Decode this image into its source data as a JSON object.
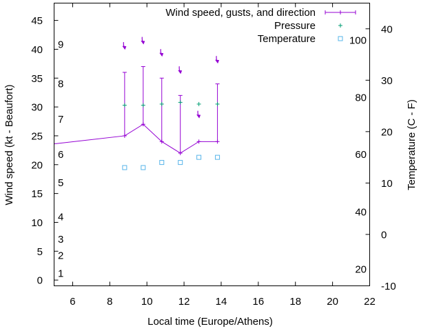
{
  "chart_data": {
    "type": "line",
    "xlabel": "Local time (Europe/Athens)",
    "ylabel": "Wind speed (kt - Beaufort)",
    "y2label": "Temperature (C - F)",
    "xlim": [
      5,
      22
    ],
    "ylim": [
      -1,
      48
    ],
    "y2lim": [
      -10,
      45
    ],
    "x_ticks": [
      6,
      8,
      10,
      12,
      14,
      16,
      18,
      20,
      22
    ],
    "y_ticks": [
      0,
      5,
      10,
      15,
      20,
      25,
      30,
      35,
      40,
      45
    ],
    "y2_ticks": [
      -10,
      0,
      10,
      20,
      30,
      40
    ],
    "beaufort_labels": [
      {
        "label": "1",
        "y": 1.2
      },
      {
        "label": "2",
        "y": 4.3
      },
      {
        "label": "3",
        "y": 7.1
      },
      {
        "label": "4",
        "y": 11.0
      },
      {
        "label": "5",
        "y": 16.9
      },
      {
        "label": "6",
        "y": 21.8
      },
      {
        "label": "7",
        "y": 27.9
      },
      {
        "label": "8",
        "y": 34.1
      },
      {
        "label": "9",
        "y": 40.9
      }
    ],
    "fahrenheit_labels": [
      {
        "label": "20",
        "t": -6.7
      },
      {
        "label": "40",
        "t": 4.4
      },
      {
        "label": "60",
        "t": 15.6
      },
      {
        "label": "80",
        "t": 26.7
      },
      {
        "label": "100",
        "t": 37.8
      }
    ],
    "grid": false,
    "legend_position": "top-right",
    "series": [
      {
        "name": "Wind speed, gusts, and direction",
        "color": "#9400d3",
        "x": [
          5.0,
          8.8,
          9.8,
          10.8,
          11.8,
          12.8,
          13.8
        ],
        "values": [
          23.6,
          25,
          27,
          24,
          22,
          24,
          24
        ],
        "gusts": [
          null,
          36,
          37,
          35,
          32,
          null,
          34
        ],
        "arrows": [
          {
            "x": 8.8,
            "y": 40.4
          },
          {
            "x": 9.8,
            "y": 41.3
          },
          {
            "x": 10.8,
            "y": 39.2
          },
          {
            "x": 11.8,
            "y": 36.2
          },
          {
            "x": 12.8,
            "y": 28.5
          },
          {
            "x": 13.8,
            "y": 38.0
          }
        ]
      },
      {
        "name": "Pressure",
        "color": "#009e73",
        "x": [
          8.8,
          9.8,
          10.8,
          11.8,
          12.8,
          13.8
        ],
        "values": [
          30.3,
          30.3,
          30.5,
          30.8,
          30.5,
          30.5
        ]
      },
      {
        "name": "Temperature",
        "color": "#56b4e9",
        "axis": "y2",
        "x": [
          8.8,
          9.8,
          10.8,
          11.8,
          12.8,
          13.8
        ],
        "values": [
          13,
          13,
          14,
          14,
          15,
          15
        ]
      }
    ]
  }
}
